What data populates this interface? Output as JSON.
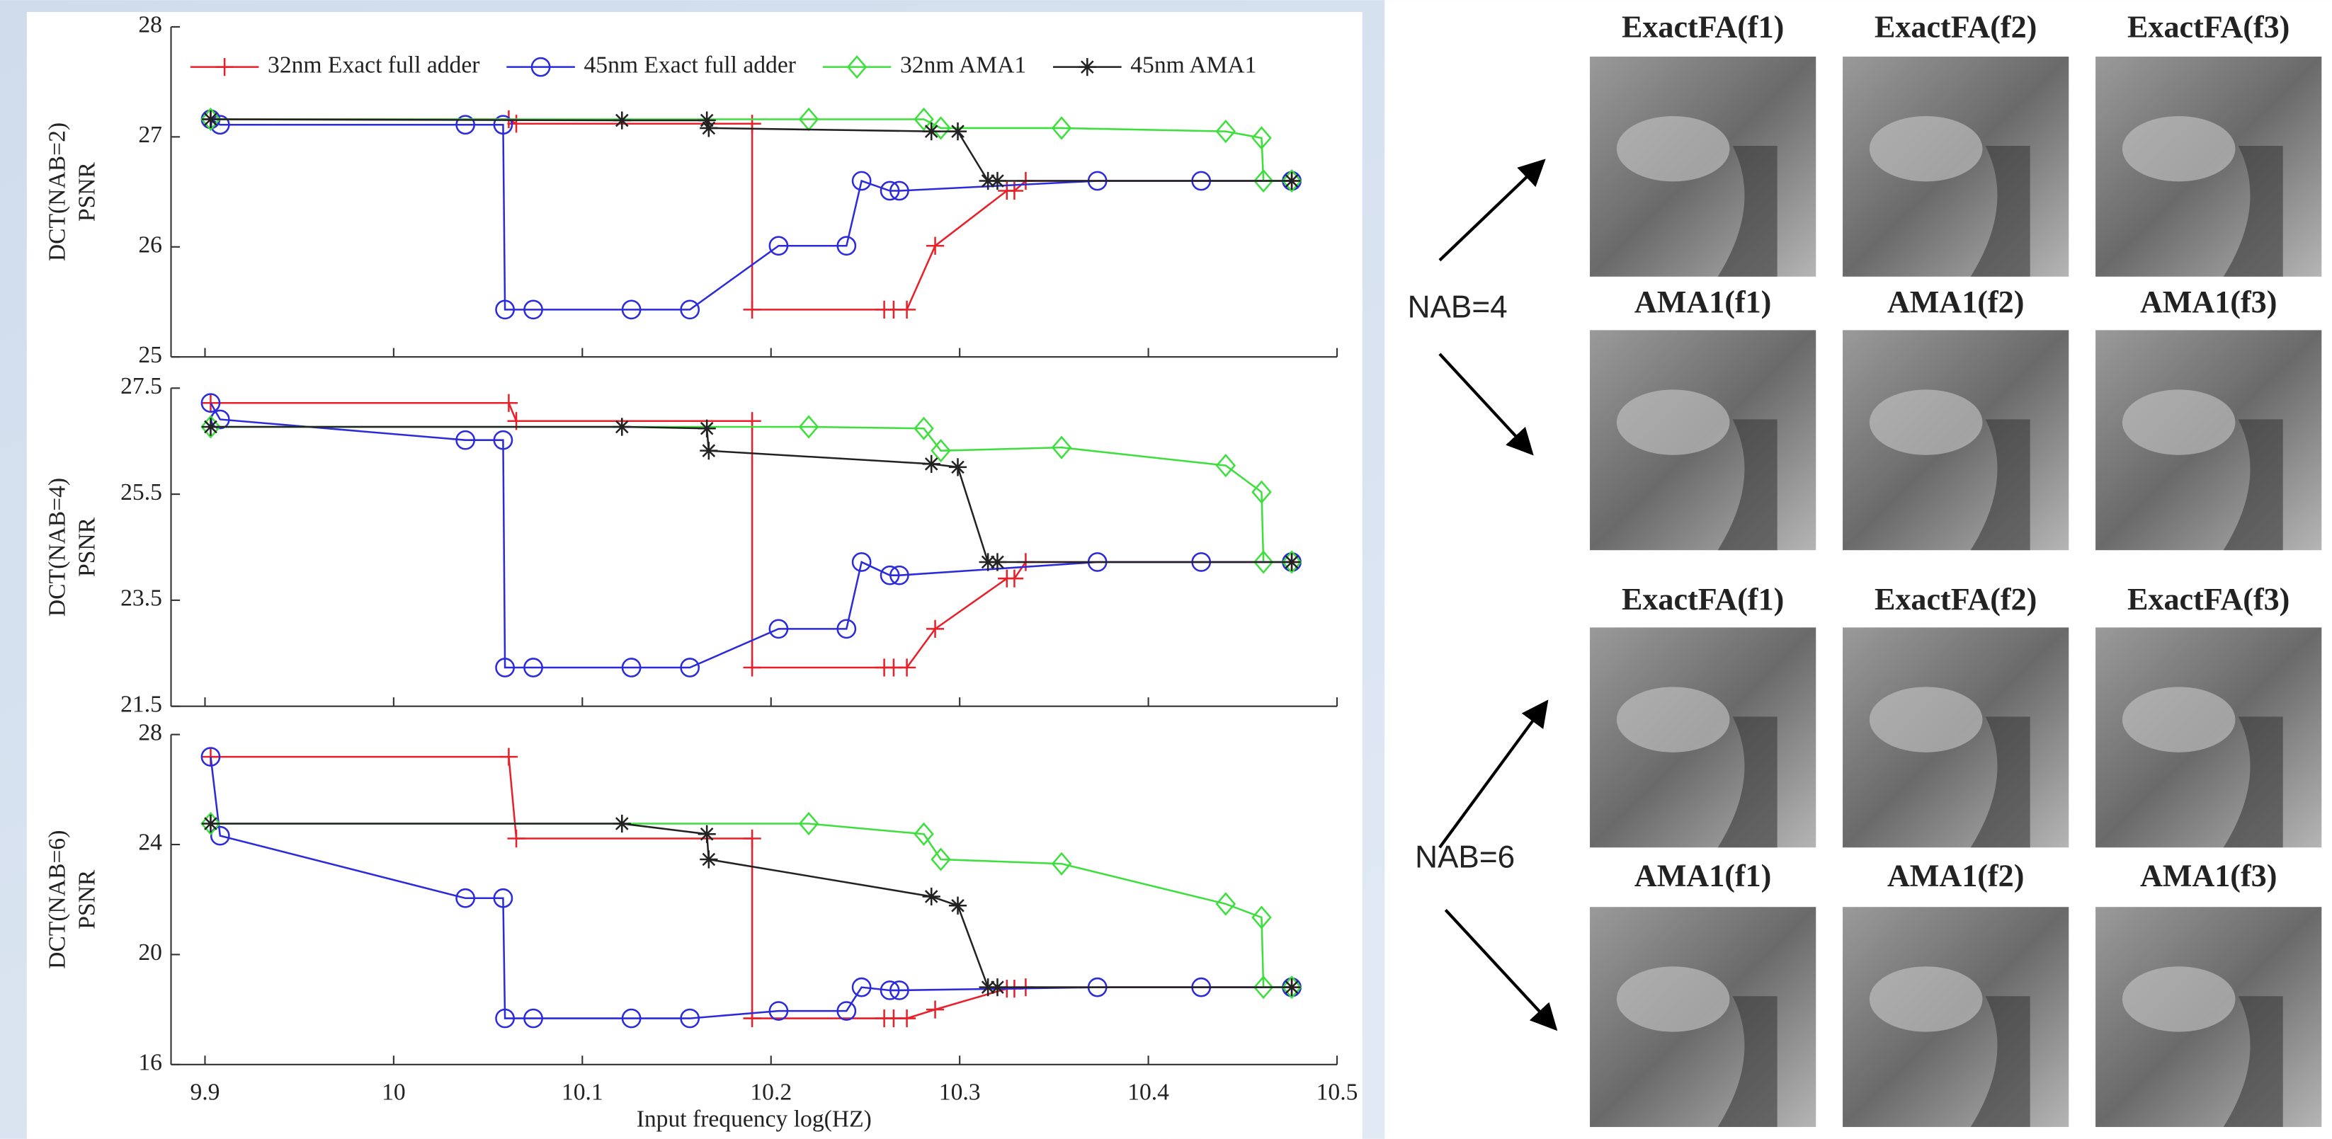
{
  "chart_data": [
    {
      "type": "line",
      "ylabel": [
        "DCT(NAB=2)",
        "PSNR"
      ],
      "xlim": [
        9.882,
        10.5
      ],
      "ylim": [
        25,
        28
      ],
      "yticks": [
        25,
        26,
        27,
        28
      ],
      "legend": "top",
      "series": [
        {
          "name": "32nm Exact full adder",
          "color": "#e8202a",
          "marker": "plus",
          "x": [
            9.903,
            10.061,
            10.065,
            10.19,
            10.19,
            10.26,
            10.265,
            10.272,
            10.287,
            10.325,
            10.329,
            10.335,
            10.476
          ],
          "values": [
            27.16,
            27.16,
            27.12,
            27.12,
            25.43,
            25.43,
            25.43,
            25.43,
            26.01,
            26.51,
            26.51,
            26.6,
            26.6
          ]
        },
        {
          "name": "45nm Exact full adder",
          "color": "#2b2bdb",
          "marker": "circle",
          "x": [
            9.903,
            9.908,
            10.038,
            10.058,
            10.059,
            10.074,
            10.126,
            10.157,
            10.204,
            10.24,
            10.248,
            10.263,
            10.268,
            10.373,
            10.428,
            10.476
          ],
          "values": [
            27.16,
            27.11,
            27.11,
            27.11,
            25.43,
            25.43,
            25.43,
            25.43,
            26.01,
            26.01,
            26.6,
            26.51,
            26.51,
            26.6,
            26.6,
            26.6
          ]
        },
        {
          "name": "32nm AMA1",
          "color": "#3ddf3d",
          "marker": "diamond",
          "x": [
            9.903,
            10.22,
            10.281,
            10.29,
            10.354,
            10.441,
            10.46,
            10.461,
            10.476
          ],
          "values": [
            27.16,
            27.16,
            27.16,
            27.08,
            27.08,
            27.05,
            26.99,
            26.6,
            26.6
          ]
        },
        {
          "name": "45nm AMA1",
          "color": "#222222",
          "marker": "star",
          "x": [
            9.903,
            10.121,
            10.166,
            10.167,
            10.285,
            10.299,
            10.315,
            10.32,
            10.476
          ],
          "values": [
            27.16,
            27.15,
            27.15,
            27.08,
            27.05,
            27.05,
            26.6,
            26.6,
            26.6
          ]
        }
      ]
    },
    {
      "type": "line",
      "ylabel": [
        "DCT(NAB=4)",
        "PSNR"
      ],
      "xlim": [
        9.882,
        10.5
      ],
      "ylim": [
        21.5,
        27.5
      ],
      "yticks": [
        21.5,
        23.5,
        25.5,
        27.5
      ],
      "series": [
        {
          "color": "#e8202a",
          "marker": "plus",
          "x": [
            9.903,
            10.061,
            10.065,
            10.19,
            10.19,
            10.26,
            10.265,
            10.272,
            10.287,
            10.325,
            10.329,
            10.335,
            10.476
          ],
          "values": [
            27.22,
            27.22,
            26.88,
            26.88,
            22.23,
            22.23,
            22.23,
            22.23,
            22.96,
            23.91,
            23.91,
            24.22,
            24.22
          ]
        },
        {
          "color": "#2b2bdb",
          "marker": "circle",
          "x": [
            9.903,
            9.908,
            10.038,
            10.058,
            10.059,
            10.074,
            10.126,
            10.157,
            10.204,
            10.24,
            10.248,
            10.263,
            10.268,
            10.373,
            10.428,
            10.476
          ],
          "values": [
            27.22,
            26.91,
            26.52,
            26.52,
            22.23,
            22.23,
            22.23,
            22.23,
            22.96,
            22.96,
            24.22,
            23.97,
            23.97,
            24.22,
            24.22,
            24.22
          ]
        },
        {
          "color": "#3ddf3d",
          "marker": "diamond",
          "x": [
            9.903,
            10.22,
            10.281,
            10.29,
            10.354,
            10.441,
            10.46,
            10.461,
            10.476
          ],
          "values": [
            26.77,
            26.77,
            26.74,
            26.32,
            26.38,
            26.04,
            25.54,
            24.22,
            24.22
          ]
        },
        {
          "color": "#222222",
          "marker": "star",
          "x": [
            9.903,
            10.121,
            10.166,
            10.167,
            10.285,
            10.299,
            10.315,
            10.32,
            10.476
          ],
          "values": [
            26.77,
            26.77,
            26.74,
            26.32,
            26.07,
            26.01,
            24.22,
            24.22,
            24.22
          ]
        }
      ]
    },
    {
      "type": "line",
      "ylabel": [
        "DCT(NAB=6)",
        "PSNR"
      ],
      "xlabel": "Input frequency log(HZ)",
      "xlim": [
        9.882,
        10.5
      ],
      "xticks": [
        9.9,
        10,
        10.1,
        10.2,
        10.3,
        10.4,
        10.5
      ],
      "ylim": [
        16,
        28
      ],
      "yticks": [
        16,
        20,
        24,
        28
      ],
      "series": [
        {
          "color": "#e8202a",
          "marker": "plus",
          "x": [
            9.903,
            10.061,
            10.065,
            10.19,
            10.19,
            10.26,
            10.265,
            10.272,
            10.287,
            10.325,
            10.329,
            10.335,
            10.476
          ],
          "values": [
            27.19,
            27.19,
            24.22,
            24.22,
            17.68,
            17.68,
            17.68,
            17.68,
            18.0,
            18.76,
            18.76,
            18.81,
            18.81
          ]
        },
        {
          "color": "#2b2bdb",
          "marker": "circle",
          "x": [
            9.903,
            9.908,
            10.038,
            10.058,
            10.059,
            10.074,
            10.126,
            10.157,
            10.204,
            10.24,
            10.248,
            10.263,
            10.268,
            10.373,
            10.428,
            10.476
          ],
          "values": [
            27.19,
            24.32,
            22.05,
            22.05,
            17.68,
            17.68,
            17.68,
            17.68,
            17.95,
            17.95,
            18.81,
            18.7,
            18.7,
            18.81,
            18.81,
            18.81
          ]
        },
        {
          "color": "#3ddf3d",
          "marker": "diamond",
          "x": [
            9.903,
            10.22,
            10.281,
            10.29,
            10.354,
            10.441,
            10.46,
            10.461,
            10.476
          ],
          "values": [
            24.76,
            24.76,
            24.38,
            23.46,
            23.3,
            21.84,
            21.35,
            18.81,
            18.81
          ]
        },
        {
          "color": "#222222",
          "marker": "star",
          "x": [
            9.903,
            10.121,
            10.166,
            10.167,
            10.285,
            10.299,
            10.315,
            10.32,
            10.476
          ],
          "values": [
            24.76,
            24.76,
            24.38,
            23.46,
            22.11,
            21.78,
            18.81,
            18.81,
            18.81
          ]
        }
      ]
    }
  ],
  "panel": {
    "groups": [
      {
        "label": "NAB=4",
        "rows": [
          [
            "ExactFA(f1)",
            "ExactFA(f2)",
            "ExactFA(f3)"
          ],
          [
            "AMA1(f1)",
            "AMA1(f2)",
            "AMA1(f3)"
          ]
        ]
      },
      {
        "label": "NAB=6",
        "rows": [
          [
            "ExactFA(f1)",
            "ExactFA(f2)",
            "ExactFA(f3)"
          ],
          [
            "AMA1(f1)",
            "AMA1(f2)",
            "AMA1(f3)"
          ]
        ]
      }
    ]
  }
}
